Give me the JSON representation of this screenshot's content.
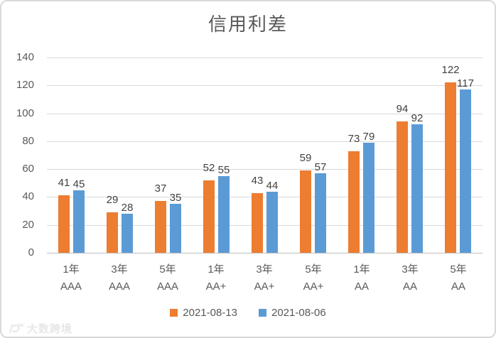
{
  "window": {
    "title": "信用利差"
  },
  "watermark": {
    "text": "大数跨境"
  },
  "colors": {
    "orange": "#ED7D31",
    "blue": "#5B9BD5",
    "title_text": "#595959",
    "data_label_text": "#404040",
    "gridline": "#D9D9D9",
    "axis_line": "#BFBFBF",
    "frame_border": "#D9D9D9"
  },
  "chart_data": {
    "type": "bar",
    "title": "信用利差",
    "categories": [
      {
        "tenor": "1年",
        "rating": "AAA"
      },
      {
        "tenor": "3年",
        "rating": "AAA"
      },
      {
        "tenor": "5年",
        "rating": "AAA"
      },
      {
        "tenor": "1年",
        "rating": "AA+"
      },
      {
        "tenor": "3年",
        "rating": "AA+"
      },
      {
        "tenor": "5年",
        "rating": "AA+"
      },
      {
        "tenor": "1年",
        "rating": "AA"
      },
      {
        "tenor": "3年",
        "rating": "AA"
      },
      {
        "tenor": "5年",
        "rating": "AA"
      }
    ],
    "series": [
      {
        "name": "2021-08-13",
        "color": "#ED7D31",
        "values": [
          41,
          29,
          37,
          52,
          43,
          59,
          73,
          94,
          122
        ]
      },
      {
        "name": "2021-08-06",
        "color": "#5B9BD5",
        "values": [
          45,
          28,
          35,
          55,
          44,
          57,
          79,
          92,
          117
        ]
      }
    ],
    "ylim": [
      0,
      140
    ],
    "ytick_step": 20,
    "yticks": [
      0,
      20,
      40,
      60,
      80,
      100,
      120,
      140
    ],
    "grid": true,
    "data_labels": true,
    "legend_position": "bottom",
    "xlabel": "",
    "ylabel": ""
  }
}
